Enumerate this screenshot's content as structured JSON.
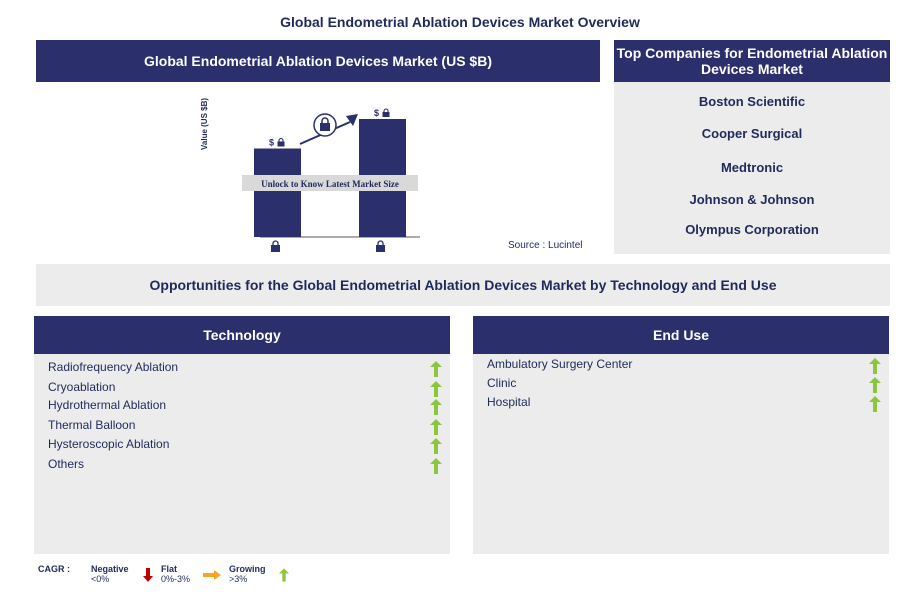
{
  "page_title": "Global Endometrial Ablation Devices Market Overview",
  "market_chart": {
    "header": "Global Endometrial Ablation Devices Market (US $B)",
    "ylabel": "Value (US $B)",
    "overlay_text": "Unlock to Know Latest Market Size",
    "bar_value_label": "$",
    "source": "Source : Lucintel"
  },
  "chart_data": {
    "type": "bar",
    "categories": [
      "",
      ""
    ],
    "values": [
      3,
      4
    ],
    "title": "",
    "xlabel": "",
    "ylabel": "Value (US $B)"
  },
  "companies": {
    "header": "Top Companies for Endometrial Ablation Devices Market",
    "list": [
      "Boston Scientific",
      "Cooper Surgical",
      "Medtronic",
      "Johnson & Johnson",
      "Olympus Corporation"
    ]
  },
  "opportunities_banner": "Opportunities for the Global Endometrial Ablation Devices Market by Technology and End Use",
  "technology": {
    "header": "Technology",
    "items": [
      {
        "label": "Radiofrequency Ablation",
        "trend": "growing"
      },
      {
        "label": "Cryoablation",
        "trend": "growing"
      },
      {
        "label": "Hydrothermal Ablation",
        "trend": "growing"
      },
      {
        "label": "Thermal Balloon",
        "trend": "growing"
      },
      {
        "label": "Hysteroscopic Ablation",
        "trend": "growing"
      },
      {
        "label": "Others",
        "trend": "growing"
      }
    ]
  },
  "end_use": {
    "header": "End Use",
    "items": [
      {
        "label": "Ambulatory Surgery Center",
        "trend": "growing"
      },
      {
        "label": "Clinic",
        "trend": "growing"
      },
      {
        "label": "Hospital",
        "trend": "growing"
      }
    ]
  },
  "legend": {
    "cagr_label": "CAGR :",
    "negative_label": "Negative",
    "negative_range": "<0%",
    "flat_label": "Flat",
    "flat_range": "0%-3%",
    "growing_label": "Growing",
    "growing_range": ">3%"
  },
  "colors": {
    "navy": "#2b2f6b",
    "panel_gray": "#ececec",
    "growing_green": "#8cc63f",
    "negative_red": "#c00000",
    "flat_orange": "#f5a623"
  }
}
